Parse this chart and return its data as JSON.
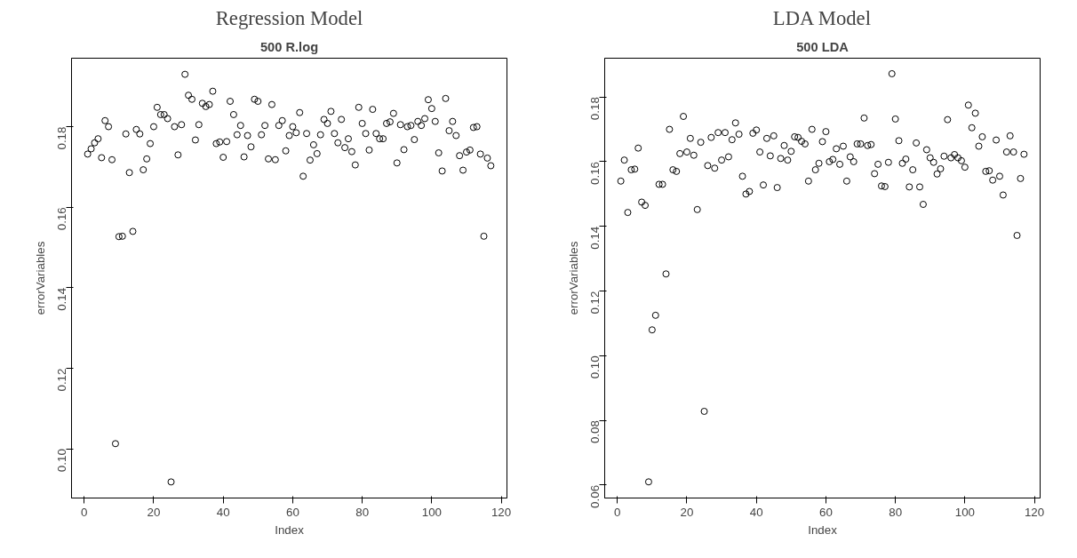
{
  "chart_data": [
    {
      "type": "scatter",
      "title": "Regression Model",
      "subtitle": "500 R.log",
      "xlabel": "Index",
      "ylabel": "errorVariables",
      "marker": "circle",
      "grid": false,
      "x": [
        1,
        2,
        3,
        4,
        5,
        6,
        7,
        8,
        9,
        10,
        11,
        12,
        13,
        14,
        15,
        16,
        17,
        18,
        19,
        20,
        21,
        22,
        23,
        24,
        25,
        26,
        27,
        28,
        29,
        30,
        31,
        32,
        33,
        34,
        35,
        36,
        37,
        38,
        39,
        40,
        41,
        42,
        43,
        44,
        45,
        46,
        47,
        48,
        49,
        50,
        51,
        52,
        53,
        54,
        55,
        56,
        57,
        58,
        59,
        60,
        61,
        62,
        63,
        64,
        65,
        66,
        67,
        68,
        69,
        70,
        71,
        72,
        73,
        74,
        75,
        76,
        77,
        78,
        79,
        80,
        81,
        82,
        83,
        84,
        85,
        86,
        87,
        88,
        89,
        90,
        91,
        92,
        93,
        94,
        95,
        96,
        97,
        98,
        99,
        100,
        101,
        102,
        103,
        104,
        105,
        106,
        107,
        108,
        109,
        110,
        111,
        112,
        113,
        114,
        115,
        116,
        117
      ],
      "series": [
        {
          "color": "#000000",
          "values": [
            0.1732,
            0.1745,
            0.176,
            0.177,
            0.1723,
            0.1815,
            0.18,
            0.1718,
            0.1013,
            0.1527,
            0.1528,
            0.1782,
            0.1686,
            0.154,
            0.1793,
            0.1782,
            0.1693,
            0.172,
            0.1758,
            0.18,
            0.1848,
            0.183,
            0.183,
            0.182,
            0.0918,
            0.18,
            0.173,
            0.1805,
            0.193,
            0.1878,
            0.1868,
            0.1767,
            0.1805,
            0.1858,
            0.185,
            0.1855,
            0.1888,
            0.1758,
            0.1762,
            0.1724,
            0.1763,
            0.1863,
            0.183,
            0.178,
            0.1803,
            0.1725,
            0.1778,
            0.175,
            0.1868,
            0.1863,
            0.178,
            0.1803,
            0.172,
            0.1855,
            0.1718,
            0.1803,
            0.1815,
            0.174,
            0.1778,
            0.18,
            0.1785,
            0.1835,
            0.1677,
            0.1783,
            0.1717,
            0.1755,
            0.1733,
            0.178,
            0.1818,
            0.1808,
            0.1838,
            0.1783,
            0.176,
            0.1818,
            0.1748,
            0.177,
            0.1738,
            0.1705,
            0.1848,
            0.1808,
            0.1783,
            0.1742,
            0.1843,
            0.1783,
            0.177,
            0.177,
            0.1808,
            0.1812,
            0.1833,
            0.171,
            0.1805,
            0.1743,
            0.18,
            0.1803,
            0.1768,
            0.1813,
            0.1803,
            0.182,
            0.1867,
            0.1845,
            0.1813,
            0.1735,
            0.169,
            0.187,
            0.179,
            0.1813,
            0.1778,
            0.1728,
            0.1692,
            0.1737,
            0.1742,
            0.1798,
            0.18,
            0.1732,
            0.1528,
            0.1722,
            0.1703
          ]
        }
      ],
      "xlim": [
        -3.64,
        121.64
      ],
      "xticks": [
        0,
        20,
        40,
        60,
        80,
        100,
        120
      ],
      "ylim": [
        0.0878,
        0.197
      ],
      "yticks": [
        {
          "value": 0.1,
          "label": "0.10"
        },
        {
          "value": 0.12,
          "label": "0.12"
        },
        {
          "value": 0.14,
          "label": "0.14"
        },
        {
          "value": 0.16,
          "label": "0.16"
        },
        {
          "value": 0.18,
          "label": "0.18"
        }
      ]
    },
    {
      "type": "scatter",
      "title": "LDA Model",
      "subtitle": "500 LDA",
      "xlabel": "Index",
      "ylabel": "errorVariables",
      "marker": "circle",
      "grid": false,
      "x": [
        1,
        2,
        3,
        4,
        5,
        6,
        7,
        8,
        9,
        10,
        11,
        12,
        13,
        14,
        15,
        16,
        17,
        18,
        19,
        20,
        21,
        22,
        23,
        24,
        25,
        26,
        27,
        28,
        29,
        30,
        31,
        32,
        33,
        34,
        35,
        36,
        37,
        38,
        39,
        40,
        41,
        42,
        43,
        44,
        45,
        46,
        47,
        48,
        49,
        50,
        51,
        52,
        53,
        54,
        55,
        56,
        57,
        58,
        59,
        60,
        61,
        62,
        63,
        64,
        65,
        66,
        67,
        68,
        69,
        70,
        71,
        72,
        73,
        74,
        75,
        76,
        77,
        78,
        79,
        80,
        81,
        82,
        83,
        84,
        85,
        86,
        87,
        88,
        89,
        90,
        91,
        92,
        93,
        94,
        95,
        96,
        97,
        98,
        99,
        100,
        101,
        102,
        103,
        104,
        105,
        106,
        107,
        108,
        109,
        110,
        111,
        112,
        113,
        114,
        115,
        116,
        117
      ],
      "series": [
        {
          "color": "#000000",
          "values": [
            0.154,
            0.1605,
            0.1443,
            0.1575,
            0.1577,
            0.1642,
            0.1475,
            0.1465,
            0.061,
            0.108,
            0.1125,
            0.153,
            0.153,
            0.1253,
            0.17,
            0.1575,
            0.157,
            0.1625,
            0.174,
            0.163,
            0.1672,
            0.162,
            0.1452,
            0.166,
            0.0828,
            0.1588,
            0.1675,
            0.158,
            0.169,
            0.1605,
            0.169,
            0.1615,
            0.1668,
            0.172,
            0.1685,
            0.1555,
            0.15,
            0.1508,
            0.1688,
            0.1698,
            0.163,
            0.1528,
            0.1672,
            0.1618,
            0.168,
            0.152,
            0.161,
            0.165,
            0.1605,
            0.1632,
            0.1677,
            0.1675,
            0.1663,
            0.1655,
            0.154,
            0.17,
            0.1575,
            0.1595,
            0.1662,
            0.1693,
            0.16,
            0.1607,
            0.164,
            0.1592,
            0.1648,
            0.154,
            0.1615,
            0.16,
            0.1655,
            0.1655,
            0.1735,
            0.165,
            0.1653,
            0.1563,
            0.1592,
            0.1525,
            0.1523,
            0.1598,
            0.1872,
            0.1732,
            0.1665,
            0.1595,
            0.1608,
            0.1522,
            0.1575,
            0.1658,
            0.1522,
            0.1468,
            0.1637,
            0.1612,
            0.1598,
            0.1562,
            0.1578,
            0.1617,
            0.173,
            0.1612,
            0.1622,
            0.1612,
            0.1603,
            0.1583,
            0.1775,
            0.1705,
            0.175,
            0.1648,
            0.1677,
            0.157,
            0.1572,
            0.1543,
            0.1667,
            0.1555,
            0.1497,
            0.163,
            0.168,
            0.163,
            0.1372,
            0.1548,
            0.1623
          ]
        }
      ],
      "xlim": [
        -3.64,
        121.64
      ],
      "xticks": [
        0,
        20,
        40,
        60,
        80,
        100,
        120
      ],
      "ylim": [
        0.056,
        0.192
      ],
      "yticks": [
        {
          "value": 0.06,
          "label": "0.06"
        },
        {
          "value": 0.08,
          "label": "0.08"
        },
        {
          "value": 0.1,
          "label": "0.10"
        },
        {
          "value": 0.12,
          "label": "0.12"
        },
        {
          "value": 0.14,
          "label": "0.14"
        },
        {
          "value": 0.16,
          "label": "0.16"
        },
        {
          "value": 0.18,
          "label": "0.18"
        }
      ]
    }
  ]
}
